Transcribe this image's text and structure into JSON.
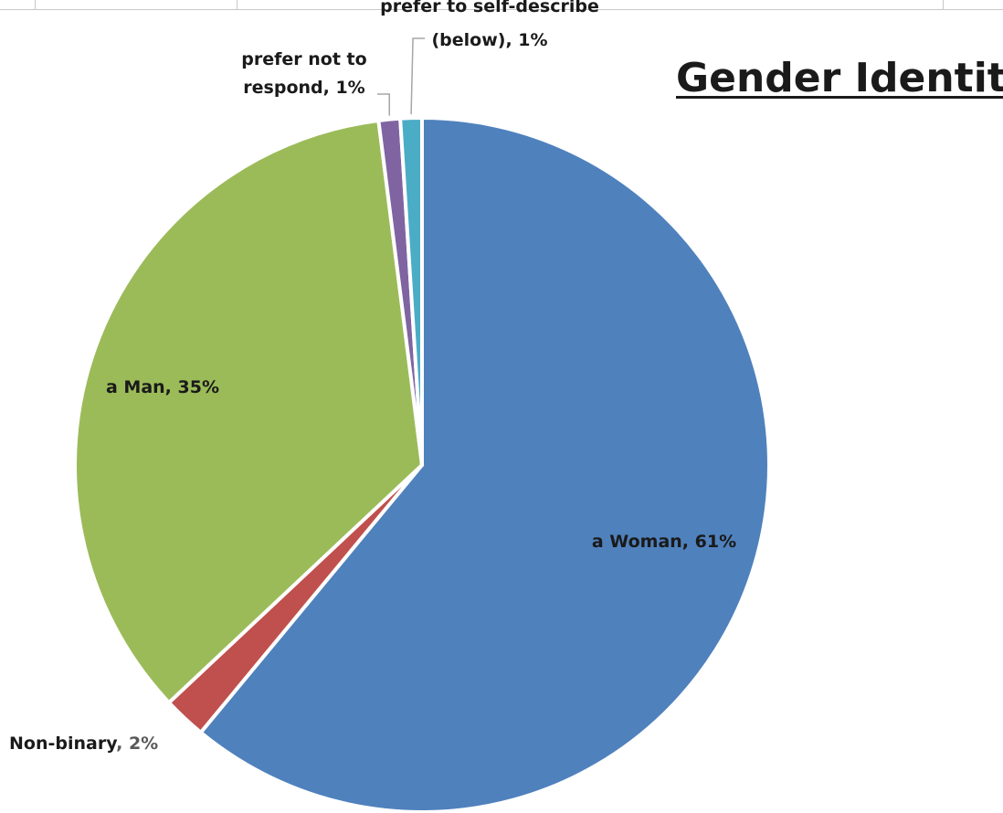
{
  "chart_data": {
    "type": "pie",
    "title": "Gender Identity",
    "slices": [
      {
        "label": "a Woman",
        "value": 61,
        "color": "#4F81BD"
      },
      {
        "label": "Non-binary",
        "value": 2,
        "color": "#C0504D"
      },
      {
        "label": "a Man",
        "value": 35,
        "color": "#9BBB59"
      },
      {
        "label": "prefer not to respond",
        "value": 1,
        "color": "#8064A2"
      },
      {
        "label": "prefer to self-describe (below)",
        "value": 1,
        "color": "#4BACC6"
      }
    ],
    "data_labels": {
      "woman": "a Woman, 61%",
      "man": "a Man, 35%",
      "nonbinary_name": "Non-binary",
      "nonbinary_pct": ", 2%",
      "prefer_not_line1": "prefer not to",
      "prefer_not_line2": "respond, 1%",
      "self_describe_line1": "prefer to self-describe",
      "self_describe_line2": "(below), 1%"
    },
    "legend": "none"
  }
}
